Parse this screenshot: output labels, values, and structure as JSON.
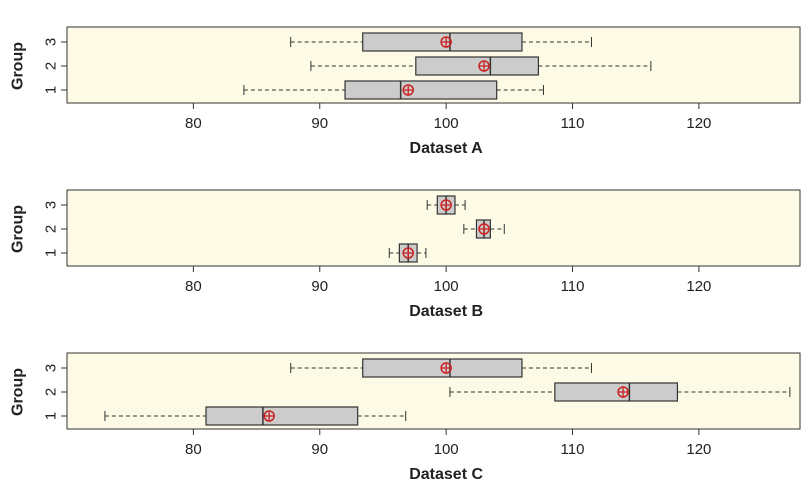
{
  "chart_data": [
    {
      "type": "boxplot",
      "orientation": "horizontal",
      "xlabel": "Dataset A",
      "ylabel": "Group",
      "xlim": [
        70,
        128
      ],
      "xticks": [
        80,
        90,
        100,
        110,
        120
      ],
      "categories": [
        "1",
        "2",
        "3"
      ],
      "series": [
        {
          "group": "1",
          "whisker_low": 84,
          "q1": 92,
          "median": 96.4,
          "q3": 104,
          "whisker_high": 107.7,
          "mean": 97
        },
        {
          "group": "2",
          "whisker_low": 89.3,
          "q1": 97.6,
          "median": 103.5,
          "q3": 107.3,
          "whisker_high": 116.2,
          "mean": 103
        },
        {
          "group": "3",
          "whisker_low": 87.7,
          "q1": 93.4,
          "median": 100.3,
          "q3": 106,
          "whisker_high": 111.5,
          "mean": 100
        }
      ]
    },
    {
      "type": "boxplot",
      "orientation": "horizontal",
      "xlabel": "Dataset B",
      "ylabel": "Group",
      "xlim": [
        70,
        128
      ],
      "xticks": [
        80,
        90,
        100,
        110,
        120
      ],
      "categories": [
        "1",
        "2",
        "3"
      ],
      "series": [
        {
          "group": "1",
          "whisker_low": 95.5,
          "q1": 96.3,
          "median": 97,
          "q3": 97.7,
          "whisker_high": 98.4,
          "mean": 97
        },
        {
          "group": "2",
          "whisker_low": 101.4,
          "q1": 102.4,
          "median": 103,
          "q3": 103.5,
          "whisker_high": 104.6,
          "mean": 103
        },
        {
          "group": "3",
          "whisker_low": 98.5,
          "q1": 99.3,
          "median": 100,
          "q3": 100.7,
          "whisker_high": 101.5,
          "mean": 100
        }
      ]
    },
    {
      "type": "boxplot",
      "orientation": "horizontal",
      "xlabel": "Dataset C",
      "ylabel": "Group",
      "xlim": [
        70,
        128
      ],
      "xticks": [
        80,
        90,
        100,
        110,
        120
      ],
      "categories": [
        "1",
        "2",
        "3"
      ],
      "series": [
        {
          "group": "1",
          "whisker_low": 73,
          "q1": 81,
          "median": 85.5,
          "q3": 93,
          "whisker_high": 96.8,
          "mean": 86
        },
        {
          "group": "2",
          "whisker_low": 100.3,
          "q1": 108.6,
          "median": 114.5,
          "q3": 118.3,
          "whisker_high": 127.2,
          "mean": 114
        },
        {
          "group": "3",
          "whisker_low": 87.7,
          "q1": 93.4,
          "median": 100.3,
          "q3": 106,
          "whisker_high": 111.5,
          "mean": 100
        }
      ]
    }
  ],
  "colors": {
    "panel_background": "#fdfbe6",
    "box_fill": "#cccccc",
    "mean_marker": "#cc2222"
  }
}
